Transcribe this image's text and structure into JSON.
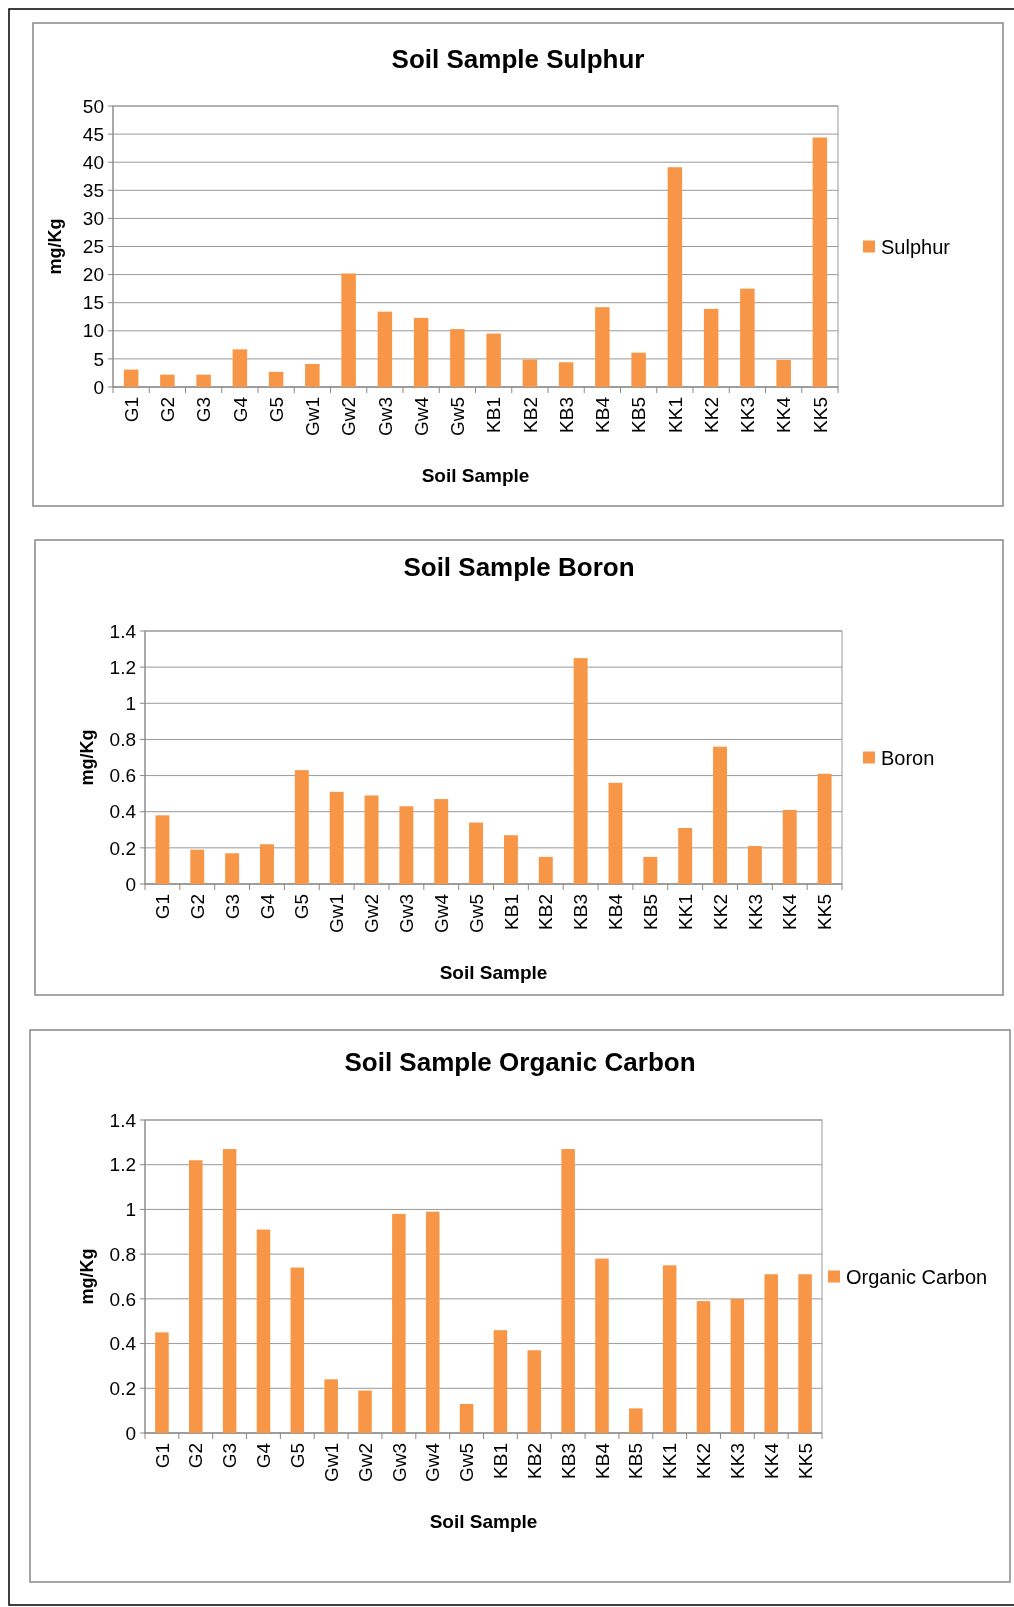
{
  "chart_data": [
    {
      "type": "bar",
      "title": "Soil  Sample Sulphur",
      "xlabel": "Soil Sample",
      "ylabel": "mg/Kg",
      "categories": [
        "G1",
        "G2",
        "G3",
        "G4",
        "G5",
        "Gw1",
        "Gw2",
        "Gw3",
        "Gw4",
        "Gw5",
        "KB1",
        "KB2",
        "KB3",
        "KB4",
        "KB5",
        "KK1",
        "KK2",
        "KK3",
        "KK4",
        "KK5"
      ],
      "series": [
        {
          "name": "Sulphur",
          "color": "#f79646",
          "values": [
            3.1,
            2.2,
            2.2,
            6.7,
            2.7,
            4.1,
            20.2,
            13.4,
            12.3,
            10.3,
            9.5,
            4.9,
            4.4,
            14.2,
            6.1,
            39.1,
            13.9,
            17.5,
            4.8,
            44.4
          ]
        }
      ],
      "ylim": [
        0,
        50
      ],
      "yticks": [
        0,
        5,
        10,
        15,
        20,
        25,
        30,
        35,
        40,
        45,
        50
      ],
      "grid": "y",
      "legend": "right"
    },
    {
      "type": "bar",
      "title": "Soil Sample Boron",
      "xlabel": "Soil Sample",
      "ylabel": "mg/Kg",
      "categories": [
        "G1",
        "G2",
        "G3",
        "G4",
        "G5",
        "Gw1",
        "Gw2",
        "Gw3",
        "Gw4",
        "Gw5",
        "KB1",
        "KB2",
        "KB3",
        "KB4",
        "KB5",
        "KK1",
        "KK2",
        "KK3",
        "KK4",
        "KK5"
      ],
      "series": [
        {
          "name": "Boron",
          "color": "#f79646",
          "values": [
            0.38,
            0.19,
            0.17,
            0.22,
            0.63,
            0.51,
            0.49,
            0.43,
            0.47,
            0.34,
            0.27,
            0.15,
            1.25,
            0.56,
            0.15,
            0.31,
            0.76,
            0.21,
            0.41,
            0.61
          ]
        }
      ],
      "ylim": [
        0,
        1.4
      ],
      "yticks": [
        0,
        0.2,
        0.4,
        0.6,
        0.8,
        1,
        1.2,
        1.4
      ],
      "grid": "y",
      "legend": "right"
    },
    {
      "type": "bar",
      "title": "Soil Sample Organic Carbon",
      "xlabel": "Soil Sample",
      "ylabel": "mg/Kg",
      "categories": [
        "G1",
        "G2",
        "G3",
        "G4",
        "G5",
        "Gw1",
        "Gw2",
        "Gw3",
        "Gw4",
        "Gw5",
        "KB1",
        "KB2",
        "KB3",
        "KB4",
        "KB5",
        "KK1",
        "KK2",
        "KK3",
        "KK4",
        "KK5"
      ],
      "series": [
        {
          "name": "Organic Carbon",
          "color": "#f79646",
          "values": [
            0.45,
            1.22,
            1.27,
            0.91,
            0.74,
            0.24,
            0.19,
            0.98,
            0.99,
            0.13,
            0.46,
            0.37,
            1.27,
            0.78,
            0.11,
            0.75,
            0.59,
            0.6,
            0.71,
            0.71
          ]
        }
      ],
      "ylim": [
        0,
        1.4
      ],
      "yticks": [
        0,
        0.2,
        0.4,
        0.6,
        0.8,
        1,
        1.2,
        1.4
      ],
      "grid": "y",
      "legend": "right"
    }
  ]
}
